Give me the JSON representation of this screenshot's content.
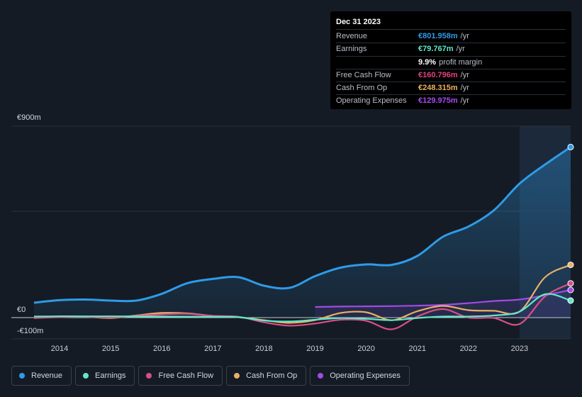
{
  "tooltip": {
    "date": "Dec 31 2023",
    "rows": [
      {
        "label": "Revenue",
        "value": "€801.958m",
        "unit": "/yr",
        "color": "#2f9be8"
      },
      {
        "label": "Earnings",
        "value": "€79.767m",
        "unit": "/yr",
        "color": "#5ee8c9"
      },
      {
        "label": "",
        "value": "9.9%",
        "unit": "profit margin",
        "color": "#ffffff"
      },
      {
        "label": "Free Cash Flow",
        "value": "€160.796m",
        "unit": "/yr",
        "color": "#e0427b"
      },
      {
        "label": "Cash From Op",
        "value": "€248.315m",
        "unit": "/yr",
        "color": "#f0b060"
      },
      {
        "label": "Operating Expenses",
        "value": "€129.975m",
        "unit": "/yr",
        "color": "#a74bf0"
      }
    ]
  },
  "legend": [
    {
      "label": "Revenue",
      "color": "#2f9be8"
    },
    {
      "label": "Earnings",
      "color": "#5ee8c9"
    },
    {
      "label": "Free Cash Flow",
      "color": "#d94f85"
    },
    {
      "label": "Cash From Op",
      "color": "#e8b06a"
    },
    {
      "label": "Operating Expenses",
      "color": "#a04be6"
    }
  ],
  "chart_data": {
    "type": "line",
    "title": "",
    "ylim": [
      -100,
      900
    ],
    "ytick_labels": [
      "€900m",
      "€0",
      "-€100m"
    ],
    "ytick_values": [
      900,
      0,
      -100
    ],
    "xlim": [
      2013.5,
      2024.0
    ],
    "xtick_labels": [
      "2014",
      "2015",
      "2016",
      "2017",
      "2018",
      "2019",
      "2020",
      "2021",
      "2022",
      "2023"
    ],
    "xtick_values": [
      2014,
      2015,
      2016,
      2017,
      2018,
      2019,
      2020,
      2021,
      2022,
      2023
    ],
    "highlight_from": 2023.0,
    "series": [
      {
        "name": "Revenue",
        "color": "#2f9be8",
        "area": true,
        "x": [
          2013.5,
          2014.0,
          2014.5,
          2015.0,
          2015.5,
          2016.0,
          2016.5,
          2017.0,
          2017.5,
          2018.0,
          2018.5,
          2019.0,
          2019.5,
          2020.0,
          2020.5,
          2021.0,
          2021.5,
          2022.0,
          2022.5,
          2023.0,
          2023.5,
          2024.0
        ],
        "values": [
          70,
          82,
          85,
          80,
          80,
          112,
          162,
          182,
          190,
          150,
          140,
          195,
          235,
          250,
          248,
          290,
          380,
          428,
          505,
          630,
          720,
          802
        ]
      },
      {
        "name": "Earnings",
        "color": "#5ee8c9",
        "area": false,
        "x": [
          2013.5,
          2014.0,
          2015.0,
          2016.0,
          2017.0,
          2017.5,
          2018.0,
          2018.5,
          2019.0,
          2019.5,
          2020.0,
          2020.5,
          2021.0,
          2021.5,
          2022.0,
          2022.5,
          2023.0,
          2023.5,
          2024.0
        ],
        "values": [
          5,
          6,
          6,
          5,
          4,
          2,
          -14,
          -18,
          -10,
          -2,
          -6,
          -12,
          -2,
          5,
          5,
          10,
          28,
          110,
          80
        ]
      },
      {
        "name": "Free Cash Flow",
        "color": "#d94f85",
        "area": false,
        "x": [
          2013.5,
          2014.0,
          2014.5,
          2015.0,
          2015.5,
          2016.0,
          2016.5,
          2017.0,
          2017.5,
          2018.0,
          2018.5,
          2019.0,
          2019.5,
          2020.0,
          2020.5,
          2021.0,
          2021.5,
          2022.0,
          2022.5,
          2023.0,
          2023.5,
          2024.0
        ],
        "values": [
          -2,
          2,
          4,
          0,
          8,
          15,
          18,
          8,
          4,
          -22,
          -38,
          -28,
          -10,
          -15,
          -55,
          5,
          40,
          0,
          -2,
          -30,
          100,
          161
        ]
      },
      {
        "name": "Cash From Op",
        "color": "#e8b06a",
        "area": false,
        "x": [
          2013.5,
          2014.0,
          2014.5,
          2015.0,
          2015.5,
          2016.0,
          2016.5,
          2017.0,
          2017.5,
          2018.0,
          2018.5,
          2019.0,
          2019.5,
          2020.0,
          2020.5,
          2021.0,
          2021.5,
          2022.0,
          2022.5,
          2023.0,
          2023.5,
          2024.0
        ],
        "values": [
          -2,
          6,
          4,
          -2,
          10,
          22,
          20,
          8,
          2,
          -12,
          -25,
          -12,
          22,
          25,
          -12,
          30,
          55,
          35,
          32,
          28,
          190,
          248
        ]
      },
      {
        "name": "Operating Expenses",
        "color": "#a04be6",
        "area": false,
        "x": [
          2019.0,
          2019.5,
          2020.0,
          2020.5,
          2021.0,
          2021.5,
          2022.0,
          2022.5,
          2023.0,
          2023.5,
          2024.0
        ],
        "values": [
          50,
          52,
          53,
          54,
          56,
          60,
          68,
          78,
          85,
          105,
          130
        ]
      }
    ]
  }
}
